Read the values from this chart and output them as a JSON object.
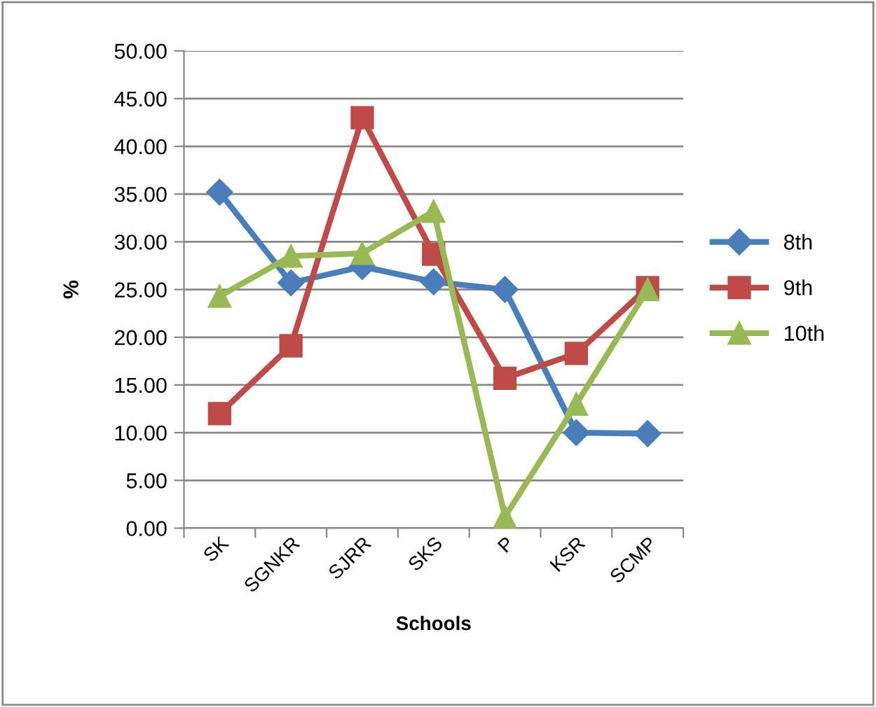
{
  "chart_data": {
    "type": "line",
    "xlabel": "Schools",
    "ylabel": "%",
    "categories": [
      "SK",
      "SGNKR",
      "SJRR",
      "SKS",
      "P",
      "KSR",
      "SCMP"
    ],
    "series": [
      {
        "name": "8th",
        "color": "#4a7ebb",
        "marker": "diamond",
        "values": [
          35.2,
          25.7,
          27.4,
          25.8,
          25.0,
          10.0,
          9.9
        ]
      },
      {
        "name": "9th",
        "color": "#be4b48",
        "marker": "square",
        "values": [
          12.0,
          19.1,
          43.0,
          28.7,
          15.7,
          18.3,
          25.2
        ]
      },
      {
        "name": "10th",
        "color": "#98b954",
        "marker": "triangle",
        "values": [
          24.3,
          28.5,
          28.8,
          33.2,
          1.2,
          13.0,
          25.0
        ]
      }
    ],
    "ylim": [
      0,
      50
    ],
    "yticks": [
      {
        "value": 0,
        "label": "0.00"
      },
      {
        "value": 5,
        "label": "5.00"
      },
      {
        "value": 10,
        "label": "10.00"
      },
      {
        "value": 15,
        "label": "15.00"
      },
      {
        "value": 20,
        "label": "20.00"
      },
      {
        "value": 25,
        "label": "25.00"
      },
      {
        "value": 30,
        "label": "30.00"
      },
      {
        "value": 35,
        "label": "35.00"
      },
      {
        "value": 40,
        "label": "40.00"
      },
      {
        "value": 45,
        "label": "45.00"
      },
      {
        "value": 50,
        "label": "50.00"
      }
    ],
    "grid": "y",
    "legend": "right"
  }
}
